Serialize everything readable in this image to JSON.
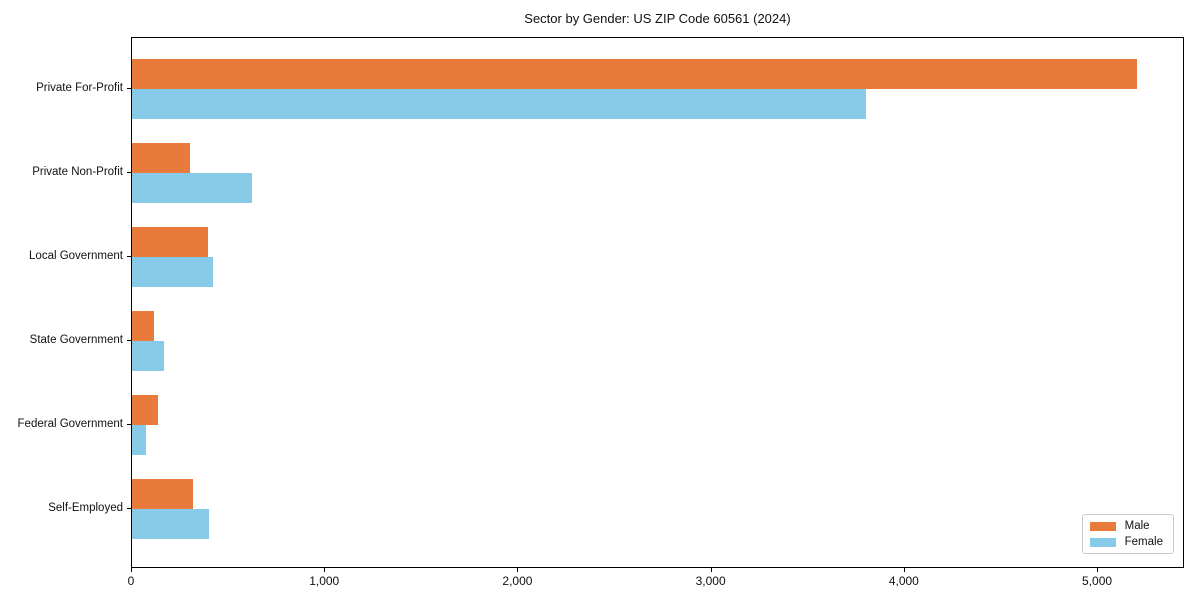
{
  "chart_data": {
    "type": "bar",
    "orientation": "horizontal",
    "title": "Sector by Gender: US ZIP Code 60561 (2024)",
    "categories": [
      "Private For-Profit",
      "Private Non-Profit",
      "Local Government",
      "State Government",
      "Federal Government",
      "Self-Employed"
    ],
    "series": [
      {
        "name": "Male",
        "color": "#e87a3c",
        "values": [
          5200,
          300,
          395,
          115,
          135,
          315
        ]
      },
      {
        "name": "Female",
        "color": "#87cbe8",
        "values": [
          3800,
          620,
          420,
          165,
          70,
          400
        ]
      }
    ],
    "xlim": [
      0,
      5450
    ],
    "xticks": [
      0,
      1000,
      2000,
      3000,
      4000,
      5000
    ],
    "xtick_labels": [
      "0",
      "1,000",
      "2,000",
      "3,000",
      "4,000",
      "5,000"
    ],
    "xlabel": "",
    "ylabel": "",
    "grid": false,
    "legend": {
      "position": "lower right",
      "entries": [
        "Male",
        "Female"
      ]
    }
  },
  "colors": {
    "male": "#e87a3c",
    "female": "#87cbe8",
    "spine": "#000000",
    "text": "#111111",
    "legend_border": "#c9c9c9"
  }
}
